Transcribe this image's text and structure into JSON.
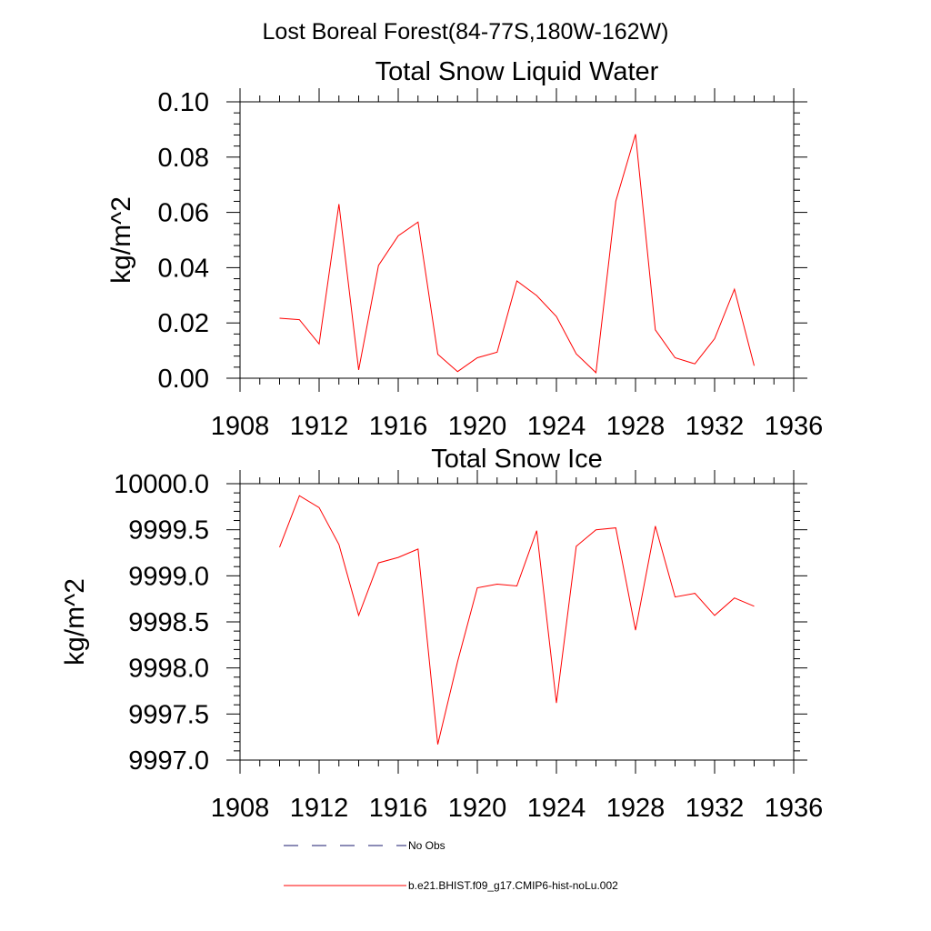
{
  "figure_title": "Lost Boreal Forest(84-77S,180W-162W)",
  "legend": {
    "items": [
      {
        "label": "No Obs",
        "color": "#1a1a6e",
        "style": "dashed"
      },
      {
        "label": "b.e21.BHIST.f09_g17.CMIP6-hist-noLu.002",
        "color": "#ff0000",
        "style": "solid"
      }
    ]
  },
  "chart_data": [
    {
      "type": "line",
      "title": "Total Snow Liquid Water",
      "xlabel": "",
      "ylabel": "kg/m^2",
      "xlim": [
        1908,
        1936
      ],
      "ylim": [
        0,
        0.1
      ],
      "x_ticks": [
        1908,
        1912,
        1916,
        1920,
        1924,
        1928,
        1932,
        1936
      ],
      "y_ticks": [
        0.0,
        0.02,
        0.04,
        0.06,
        0.08,
        0.1
      ],
      "y_tick_labels": [
        "0.00",
        "0.02",
        "0.04",
        "0.06",
        "0.08",
        "0.10"
      ],
      "x_tick_labels": [
        "1908",
        "1912",
        "1916",
        "1920",
        "1924",
        "1928",
        "1932",
        "1936"
      ],
      "grid": false,
      "series": [
        {
          "name": "b.e21.BHIST.f09_g17.CMIP6-hist-noLu.002",
          "color": "#ff0000",
          "x": [
            1910,
            1911,
            1912,
            1913,
            1914,
            1915,
            1916,
            1917,
            1918,
            1919,
            1920,
            1921,
            1922,
            1923,
            1924,
            1925,
            1926,
            1927,
            1928,
            1929,
            1930,
            1931,
            1932,
            1933,
            1934
          ],
          "y": [
            0.0217,
            0.0212,
            0.0124,
            0.063,
            0.003,
            0.0408,
            0.0515,
            0.0565,
            0.0087,
            0.0024,
            0.0074,
            0.0094,
            0.0352,
            0.0299,
            0.0223,
            0.0088,
            0.002,
            0.064,
            0.0883,
            0.0175,
            0.0074,
            0.0052,
            0.0143,
            0.0322,
            0.0045
          ]
        }
      ]
    },
    {
      "type": "line",
      "title": "Total Snow Ice",
      "xlabel": "",
      "ylabel": "kg/m^2",
      "xlim": [
        1908,
        1936
      ],
      "ylim": [
        9997.0,
        10000.0
      ],
      "x_ticks": [
        1908,
        1912,
        1916,
        1920,
        1924,
        1928,
        1932,
        1936
      ],
      "y_ticks": [
        9997.0,
        9997.5,
        9998.0,
        9998.5,
        9999.0,
        9999.5,
        10000.0
      ],
      "y_tick_labels": [
        "9997.0",
        "9997.5",
        "9998.0",
        "9998.5",
        "9999.0",
        "9999.5",
        "10000.0"
      ],
      "x_tick_labels": [
        "1908",
        "1912",
        "1916",
        "1920",
        "1924",
        "1928",
        "1932",
        "1936"
      ],
      "grid": false,
      "series": [
        {
          "name": "b.e21.BHIST.f09_g17.CMIP6-hist-noLu.002",
          "color": "#ff0000",
          "x": [
            1910,
            1911,
            1912,
            1913,
            1914,
            1915,
            1916,
            1917,
            1918,
            1919,
            1920,
            1921,
            1922,
            1923,
            1924,
            1925,
            1926,
            1927,
            1928,
            1929,
            1930,
            1931,
            1932,
            1933,
            1934
          ],
          "y": [
            9999.31,
            9999.87,
            9999.74,
            9999.34,
            9998.57,
            9999.14,
            9999.2,
            9999.29,
            9997.17,
            9998.07,
            9998.87,
            9998.91,
            9998.89,
            9999.49,
            9997.62,
            9999.32,
            9999.5,
            9999.52,
            9998.41,
            9999.54,
            9998.77,
            9998.81,
            9998.57,
            9998.76,
            9998.67
          ]
        }
      ]
    }
  ]
}
